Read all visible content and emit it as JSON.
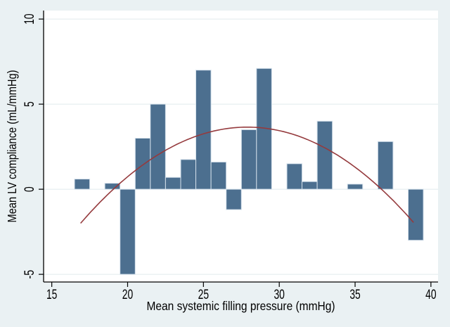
{
  "figure": {
    "background": "#eaf1f3",
    "plot_background": "#ffffff"
  },
  "chart_data": {
    "type": "bar",
    "title": "",
    "xlabel": "Mean systemic filling pressure (mmHg)",
    "ylabel": "Mean LV compliance (mL/mmHg)",
    "xlim": [
      14.46,
      40.47
    ],
    "ylim": [
      -5.45,
      10.5
    ],
    "xticks": [
      15,
      20,
      25,
      30,
      35,
      40
    ],
    "yticks": [
      -5,
      0,
      5,
      10
    ],
    "grid": true,
    "legend": "none",
    "bar_width": 1,
    "bars": [
      {
        "x": 17,
        "y": 0.6
      },
      {
        "x": 19,
        "y": 0.35
      },
      {
        "x": 20,
        "y": -5.0
      },
      {
        "x": 21,
        "y": 3.0
      },
      {
        "x": 22,
        "y": 5.0
      },
      {
        "x": 23,
        "y": 0.7
      },
      {
        "x": 24,
        "y": 1.75
      },
      {
        "x": 25,
        "y": 7.0
      },
      {
        "x": 26,
        "y": 1.6
      },
      {
        "x": 27,
        "y": -1.2
      },
      {
        "x": 28,
        "y": 3.5
      },
      {
        "x": 29,
        "y": 7.1
      },
      {
        "x": 31,
        "y": 1.5
      },
      {
        "x": 32,
        "y": 0.45
      },
      {
        "x": 33,
        "y": 4.0
      },
      {
        "x": 35,
        "y": 0.3
      },
      {
        "x": 37,
        "y": 2.8
      },
      {
        "x": 39,
        "y": -3.0
      }
    ],
    "fit_curve": {
      "shape": "quadratic",
      "vertex": {
        "x": 27.9,
        "y": 3.65
      },
      "a": -0.0467,
      "x_range": [
        16.9,
        38.85
      ]
    },
    "colors": {
      "bar_fill": "#4c6f8f",
      "bar_outline": "#d6e2ec",
      "curve": "#953a3d",
      "grid": "#e0eaee",
      "axis": "#000000",
      "text": "#000000"
    }
  }
}
